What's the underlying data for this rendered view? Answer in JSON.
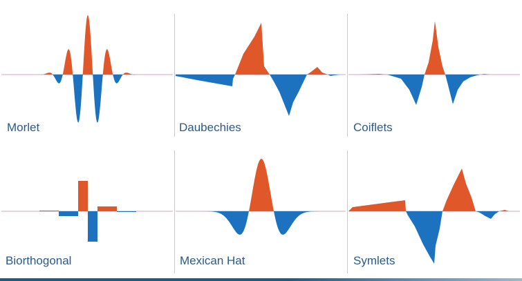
{
  "colors": {
    "positive": "#e0572a",
    "negative": "#1d72bf",
    "baseline": "#d9a6b3",
    "divider": "#c9c9c9",
    "label": "#2a5a8a",
    "bar_dark": "#1d5a86",
    "bar_light": "#9bb9cf"
  },
  "wavelets": [
    {
      "id": "morlet",
      "label": "Morlet"
    },
    {
      "id": "daubechies",
      "label": "Daubechies"
    },
    {
      "id": "coiflets",
      "label": "Coiflets"
    },
    {
      "id": "biorthogonal",
      "label": "Biorthogonal"
    },
    {
      "id": "mexican-hat",
      "label": "Mexican Hat"
    },
    {
      "id": "symlets",
      "label": "Symlets"
    }
  ]
}
